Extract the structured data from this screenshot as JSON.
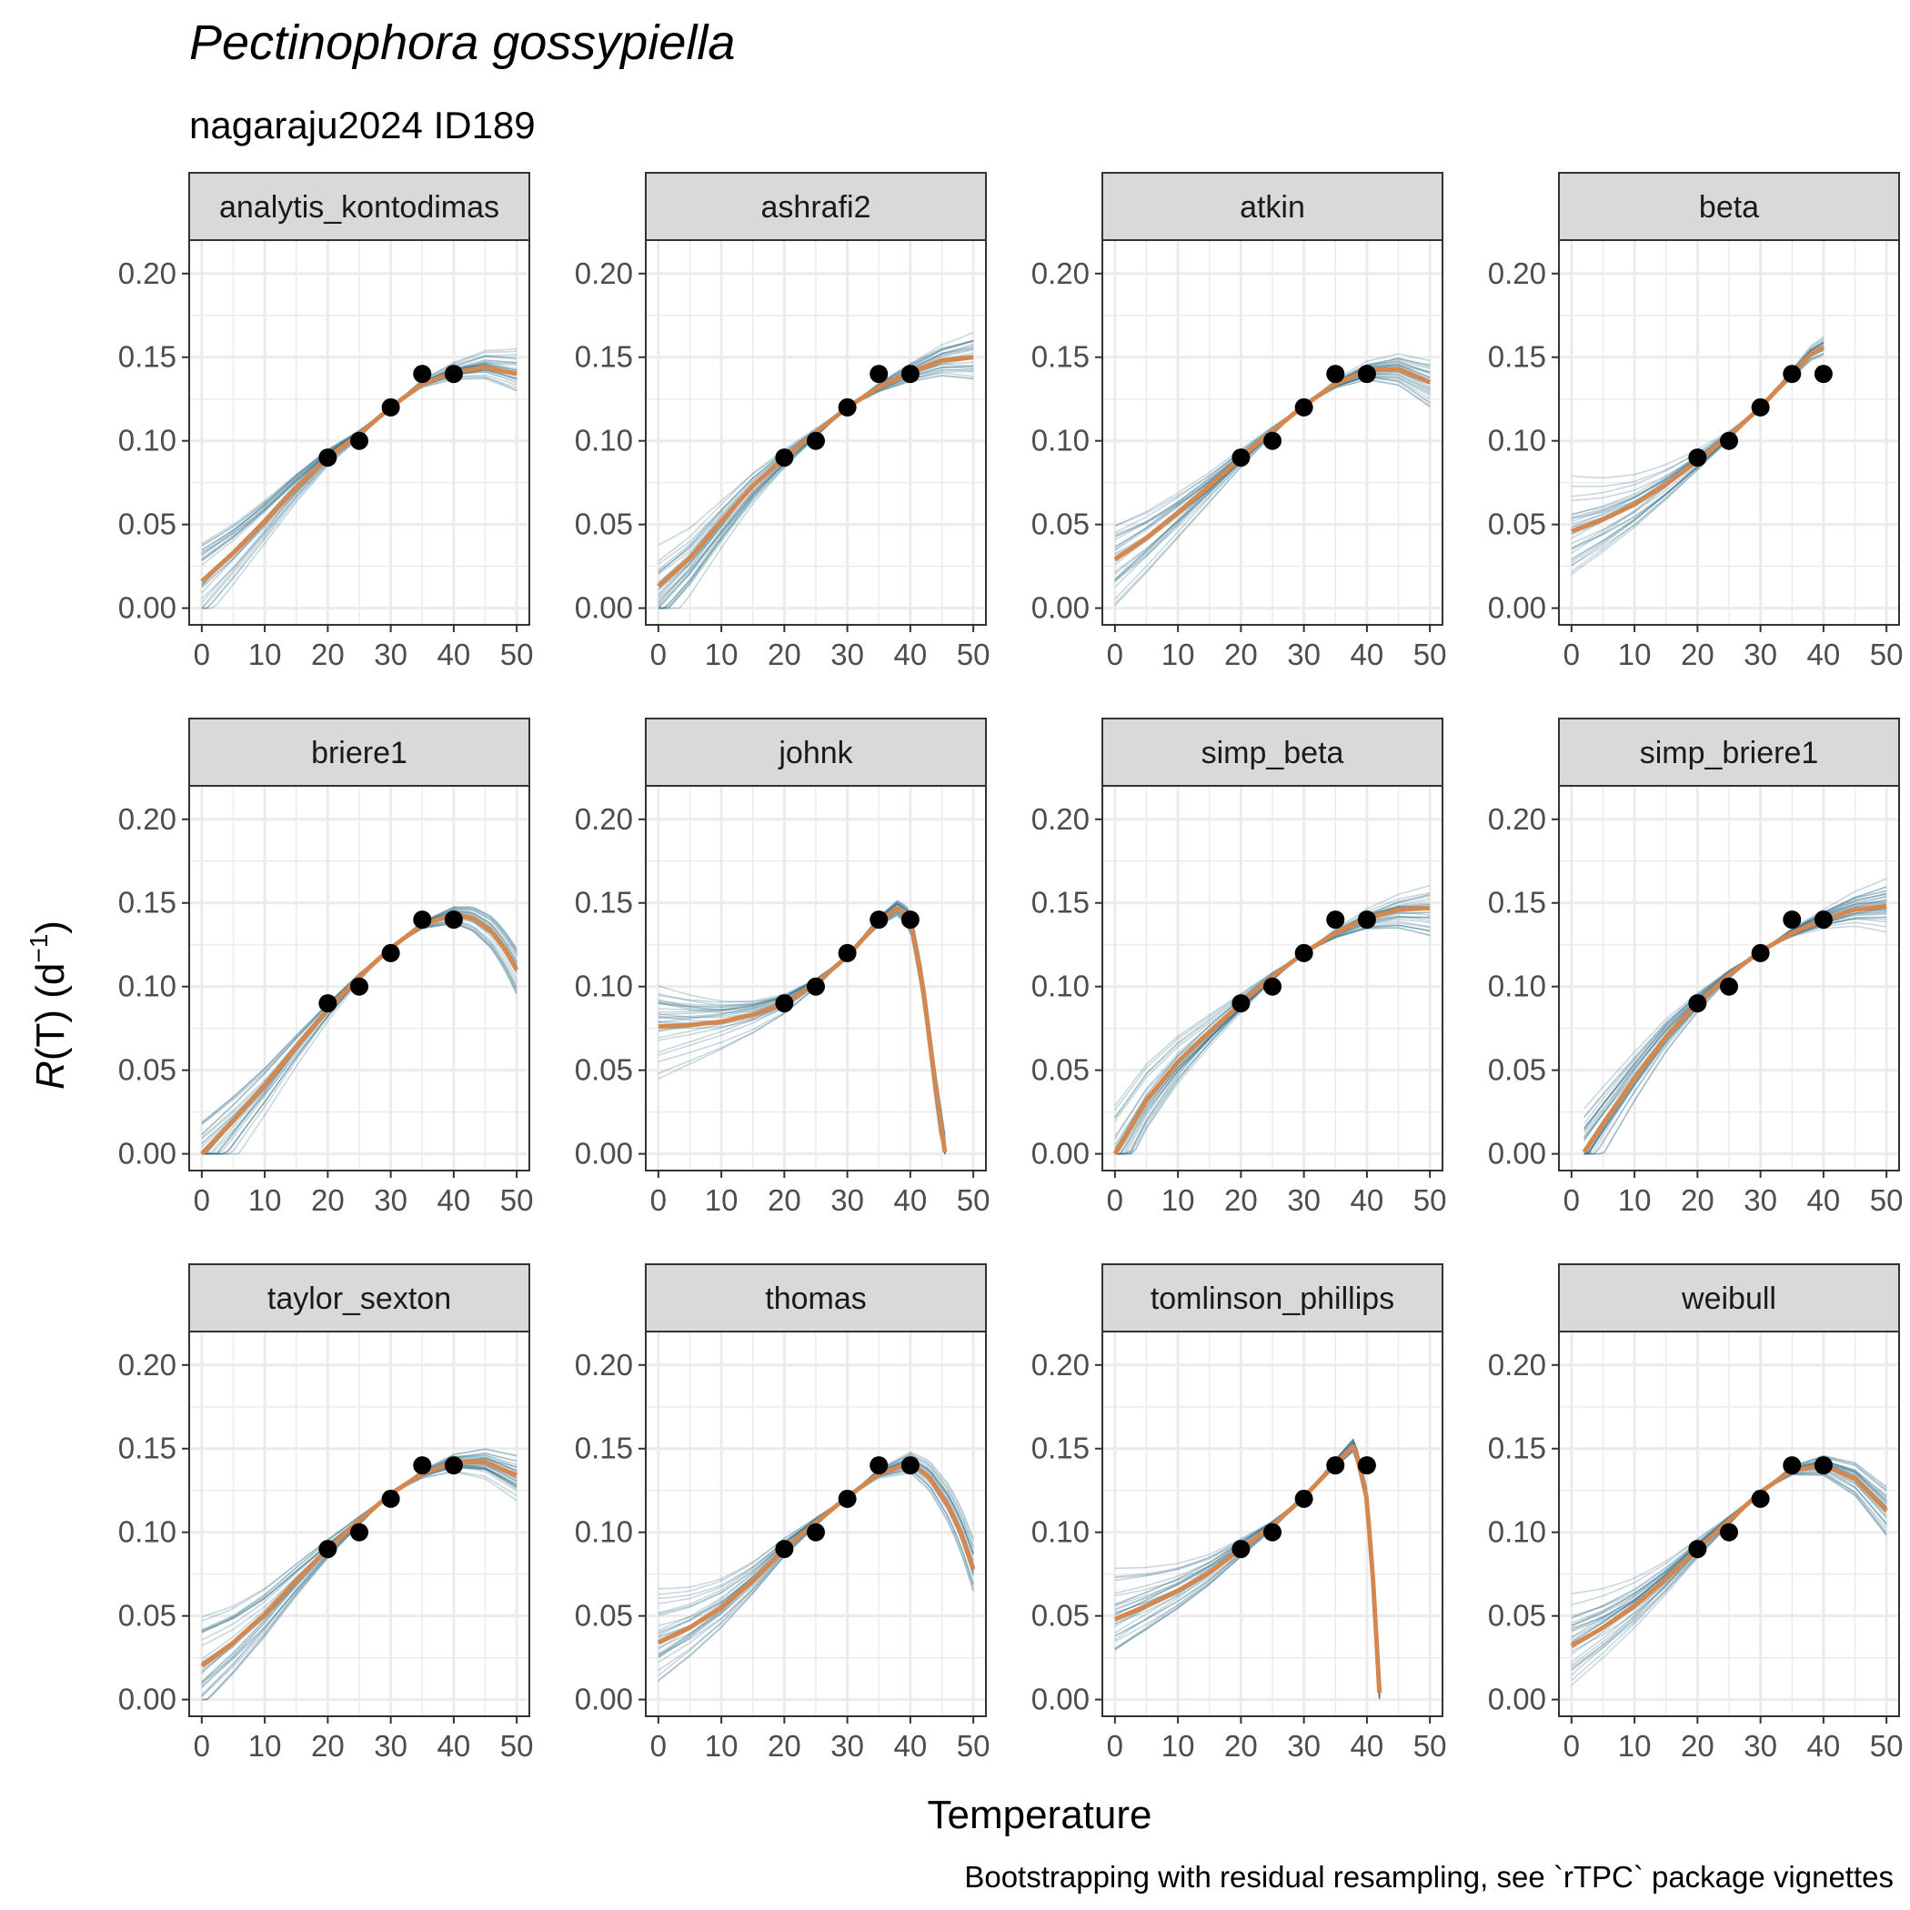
{
  "title": "Pectinophora gossypiella",
  "subtitle": "nagaraju2024 ID189",
  "x_axis_title": "Temperature",
  "y_axis_title": {
    "italic": "R",
    "rest": "(T) (d",
    "sup": "−1",
    "close": ")"
  },
  "caption": "Bootstrapping with residual resampling, see `rTPC` package vignettes",
  "colors": {
    "fit_line": "#d4874e",
    "bootstrap_lines": "#2e6a86",
    "points": "#000000",
    "strip_fill": "#d9d9d9",
    "panel_border": "#333333",
    "grid": "#ebebeb"
  },
  "chart_data": {
    "type": "line",
    "facets": [
      "analytis_kontodimas",
      "ashrafi2",
      "atkin",
      "beta",
      "briere1",
      "johnk",
      "simp_beta",
      "simp_briere1",
      "taylor_sexton",
      "thomas",
      "tomlinson_phillips",
      "weibull"
    ],
    "x_ticks": [
      0,
      10,
      20,
      30,
      40,
      50
    ],
    "y_ticks": [
      "0.00",
      "0.05",
      "0.10",
      "0.15",
      "0.20"
    ],
    "xlim": [
      -2,
      52
    ],
    "ylim": [
      -0.01,
      0.22
    ],
    "grid": true,
    "observed_points": {
      "x": [
        20,
        25,
        30,
        35,
        40
      ],
      "y": [
        0.09,
        0.1,
        0.12,
        0.14,
        0.14
      ]
    },
    "fitted_curves": {
      "analytis_kontodimas": {
        "x": [
          0,
          5,
          10,
          15,
          20,
          25,
          30,
          35,
          40,
          45,
          50
        ],
        "y": [
          0.016,
          0.033,
          0.052,
          0.072,
          0.09,
          0.104,
          0.12,
          0.134,
          0.141,
          0.144,
          0.14
        ]
      },
      "ashrafi2": {
        "x": [
          0,
          5,
          10,
          15,
          20,
          25,
          30,
          35,
          40,
          45,
          50
        ],
        "y": [
          0.013,
          0.03,
          0.052,
          0.073,
          0.09,
          0.105,
          0.12,
          0.132,
          0.141,
          0.148,
          0.15
        ]
      },
      "atkin": {
        "x": [
          0,
          5,
          10,
          15,
          20,
          25,
          30,
          35,
          40,
          45,
          50
        ],
        "y": [
          0.029,
          0.042,
          0.057,
          0.073,
          0.09,
          0.106,
          0.121,
          0.134,
          0.142,
          0.143,
          0.135
        ]
      },
      "beta": {
        "x": [
          0,
          5,
          10,
          15,
          20,
          25,
          30,
          35,
          38,
          40
        ],
        "y": [
          0.046,
          0.053,
          0.062,
          0.074,
          0.088,
          0.103,
          0.12,
          0.14,
          0.152,
          0.156
        ]
      },
      "briere1": {
        "x": [
          0,
          5,
          10,
          15,
          20,
          25,
          30,
          35,
          40,
          43,
          46,
          48,
          50
        ],
        "y": [
          0.0,
          0.02,
          0.041,
          0.064,
          0.086,
          0.106,
          0.123,
          0.137,
          0.143,
          0.141,
          0.133,
          0.123,
          0.11
        ]
      },
      "johnk": {
        "x": [
          0,
          5,
          10,
          15,
          20,
          25,
          30,
          35,
          38,
          40,
          42,
          44,
          45.5
        ],
        "y": [
          0.076,
          0.077,
          0.079,
          0.083,
          0.09,
          0.102,
          0.118,
          0.139,
          0.147,
          0.14,
          0.1,
          0.04,
          0.001
        ]
      },
      "simp_beta": {
        "x": [
          0,
          5,
          10,
          15,
          20,
          25,
          30,
          35,
          40,
          45,
          50
        ],
        "y": [
          0.0,
          0.032,
          0.055,
          0.073,
          0.09,
          0.106,
          0.12,
          0.132,
          0.141,
          0.146,
          0.147
        ]
      },
      "simp_briere1": {
        "x": [
          2,
          5,
          10,
          15,
          20,
          25,
          30,
          35,
          40,
          45,
          50
        ],
        "y": [
          0.001,
          0.018,
          0.045,
          0.07,
          0.09,
          0.107,
          0.121,
          0.132,
          0.14,
          0.146,
          0.148
        ]
      },
      "taylor_sexton": {
        "x": [
          0,
          5,
          10,
          15,
          20,
          25,
          30,
          35,
          40,
          45,
          50
        ],
        "y": [
          0.02,
          0.034,
          0.051,
          0.071,
          0.09,
          0.107,
          0.123,
          0.135,
          0.142,
          0.142,
          0.134
        ]
      },
      "thomas": {
        "x": [
          0,
          5,
          10,
          15,
          20,
          25,
          30,
          35,
          40,
          43,
          46,
          48,
          50
        ],
        "y": [
          0.034,
          0.043,
          0.055,
          0.071,
          0.09,
          0.106,
          0.121,
          0.135,
          0.141,
          0.133,
          0.116,
          0.1,
          0.078
        ]
      },
      "tomlinson_phillips": {
        "x": [
          0,
          5,
          10,
          15,
          20,
          25,
          30,
          35,
          38,
          40,
          41,
          42
        ],
        "y": [
          0.048,
          0.056,
          0.065,
          0.076,
          0.09,
          0.104,
          0.121,
          0.141,
          0.152,
          0.12,
          0.07,
          0.004
        ]
      },
      "weibull": {
        "x": [
          0,
          5,
          10,
          15,
          20,
          25,
          30,
          35,
          40,
          45,
          50
        ],
        "y": [
          0.032,
          0.043,
          0.056,
          0.072,
          0.09,
          0.107,
          0.124,
          0.137,
          0.14,
          0.132,
          0.113
        ]
      }
    }
  }
}
